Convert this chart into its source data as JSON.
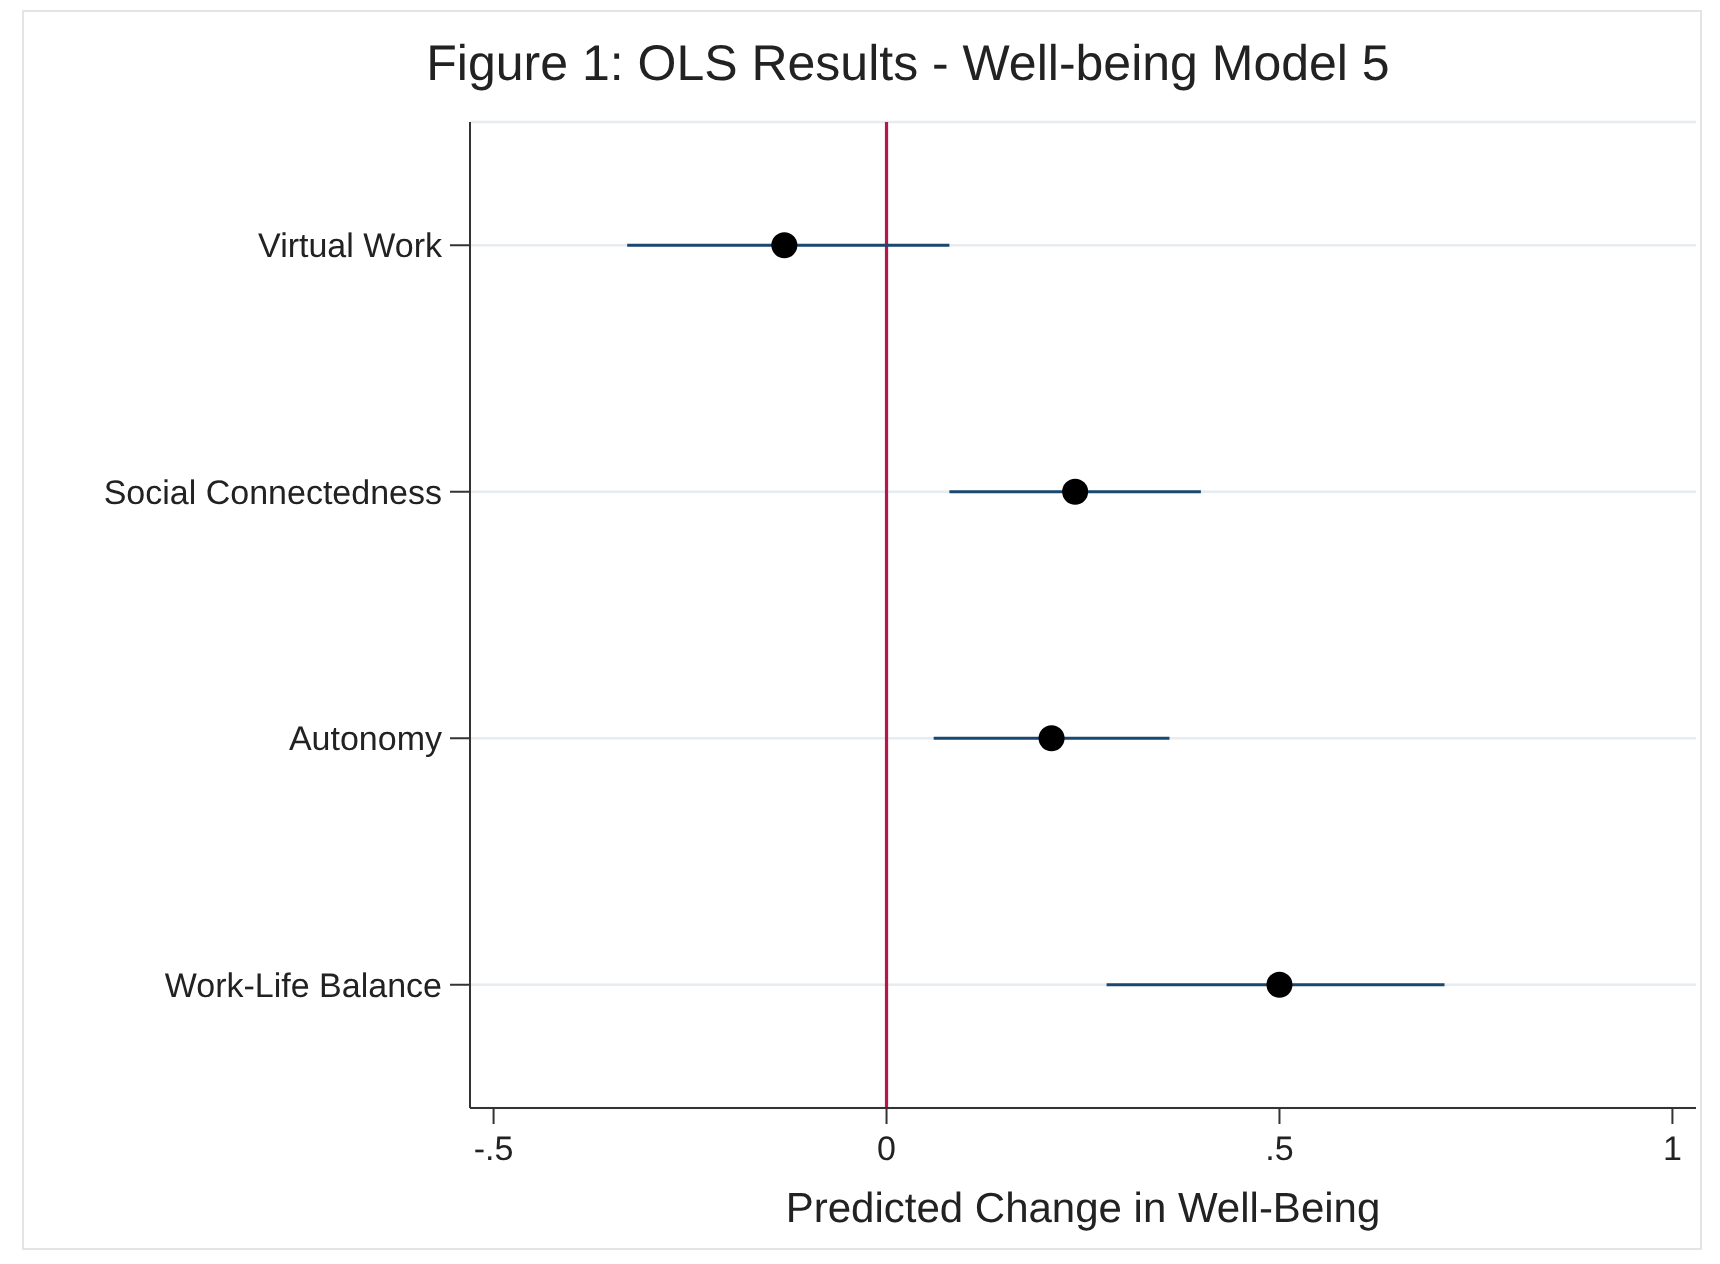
{
  "chart_data": {
    "type": "scatter",
    "orientation": "horizontal",
    "title": "Figure 1: OLS Results - Well-being Model 5",
    "xlabel": "Predicted Change in Well-Being",
    "categories": [
      "Virtual Work",
      "Social Connectedness",
      "Autonomy",
      "Work-Life Balance"
    ],
    "values": [
      -0.13,
      0.24,
      0.21,
      0.5
    ],
    "color": "#000000",
    "errors": [
      [
        -0.33,
        0.08
      ],
      [
        0.08,
        0.4
      ],
      [
        0.06,
        0.36
      ],
      [
        0.28,
        0.71
      ]
    ],
    "xlim": [
      -0.53,
      1.03
    ],
    "xticks": [
      {
        "value": -0.5,
        "label": "-.5"
      },
      0,
      {
        "value": 0.5,
        "label": ".5"
      },
      1
    ],
    "ref_lines": [
      {
        "axis": "x",
        "value": 0,
        "color": "#b5174b"
      }
    ],
    "grid": "y",
    "marker": "circle"
  }
}
